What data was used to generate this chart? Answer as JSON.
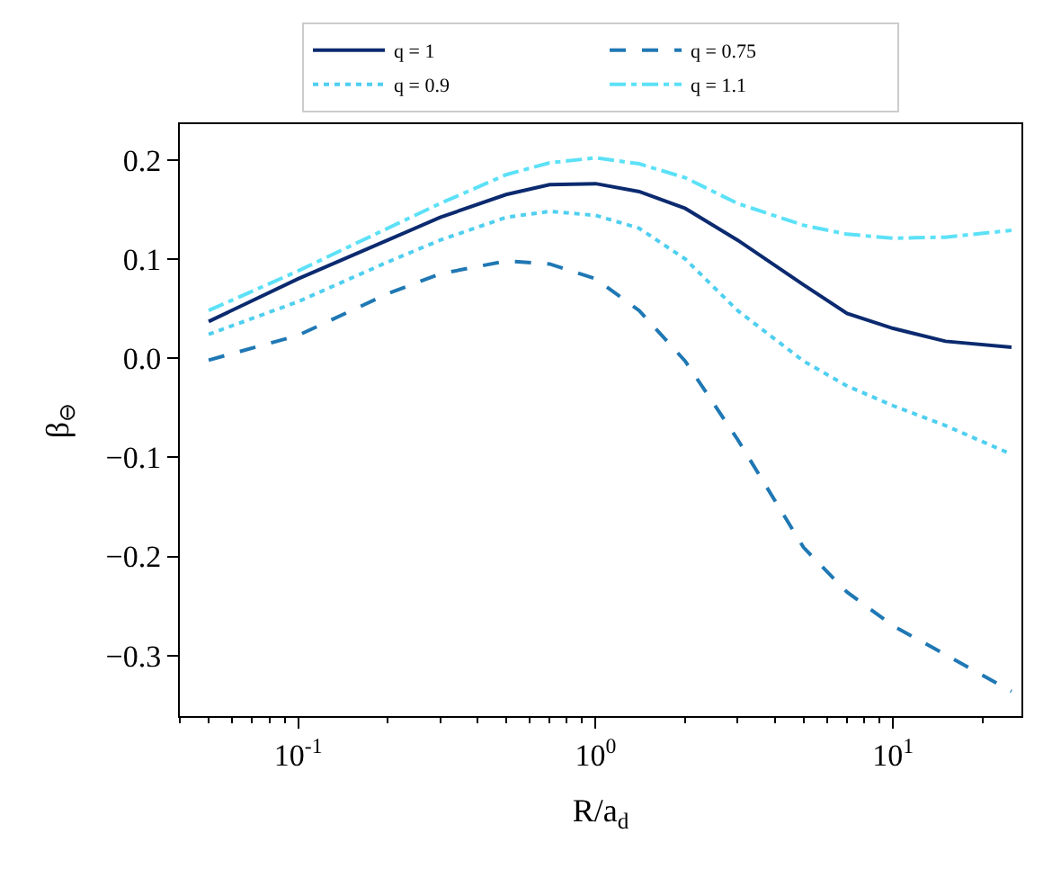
{
  "chart_data": {
    "type": "line",
    "xlabel": "R/a$_{d}$",
    "ylabel": "β$_{⊖}$",
    "log": "x",
    "legend": "top",
    "marker": "none",
    "x": [
      0.05,
      0.1,
      0.2,
      0.3,
      0.5,
      0.7,
      1,
      1.4,
      2,
      3,
      5,
      7,
      10,
      15,
      25
    ],
    "xlim": [
      0.04,
      27
    ],
    "xticks": [
      {
        "value": 0.1,
        "label": "10$^{-1}$"
      },
      {
        "value": 1,
        "label": "10$^{0}$"
      },
      {
        "value": 10,
        "label": "10$^{1}$"
      },
      {
        "value": 0.04,
        "label": null
      },
      {
        "value": 0.05,
        "label": null
      },
      {
        "value": 0.06,
        "label": null
      },
      {
        "value": 0.07,
        "label": null
      },
      {
        "value": 0.08,
        "label": null
      },
      {
        "value": 0.09,
        "label": null
      },
      {
        "value": 0.2,
        "label": null
      },
      {
        "value": 0.3,
        "label": null
      },
      {
        "value": 0.4,
        "label": null
      },
      {
        "value": 0.5,
        "label": null
      },
      {
        "value": 0.6,
        "label": null
      },
      {
        "value": 0.7,
        "label": null
      },
      {
        "value": 0.8,
        "label": null
      },
      {
        "value": 0.9,
        "label": null
      },
      {
        "value": 2,
        "label": null
      },
      {
        "value": 3,
        "label": null
      },
      {
        "value": 4,
        "label": null
      },
      {
        "value": 5,
        "label": null
      },
      {
        "value": 6,
        "label": null
      },
      {
        "value": 7,
        "label": null
      },
      {
        "value": 8,
        "label": null
      },
      {
        "value": 9,
        "label": null
      },
      {
        "value": 20,
        "label": null
      }
    ],
    "ylim": [
      -0.361,
      0.236
    ],
    "yticks": [
      {
        "value": -0.3,
        "label": "−0.3"
      },
      {
        "value": -0.2,
        "label": "−0.2"
      },
      {
        "value": -0.1,
        "label": "−0.1"
      },
      {
        "value": 0,
        "label": "0.0"
      },
      {
        "value": 0.1,
        "label": "0.1"
      },
      {
        "value": 0.2,
        "label": "0.2"
      }
    ],
    "series": [
      {
        "name": "q = 1",
        "color": "#0b2a6f",
        "line_style": "solid",
        "values": [
          0.037,
          0.08,
          0.119,
          0.142,
          0.165,
          0.175,
          0.176,
          0.168,
          0.151,
          0.119,
          0.074,
          0.045,
          0.03,
          0.017,
          0.011
        ]
      },
      {
        "name": "q = 0.75",
        "color": "#1f78b4",
        "line_style": "dashed",
        "values": [
          -0.002,
          0.023,
          0.065,
          0.085,
          0.098,
          0.095,
          0.08,
          0.048,
          -0.003,
          -0.082,
          -0.191,
          -0.236,
          -0.27,
          -0.299,
          -0.336
        ]
      },
      {
        "name": "q = 0.9",
        "color": "#4fcff0",
        "line_style": "dotted",
        "values": [
          0.024,
          0.057,
          0.097,
          0.119,
          0.142,
          0.148,
          0.144,
          0.131,
          0.1,
          0.048,
          -0.003,
          -0.028,
          -0.048,
          -0.068,
          -0.097
        ]
      },
      {
        "name": "q = 1.1",
        "color": "#5ce1f7",
        "line_style": "dashdot",
        "values": [
          0.048,
          0.088,
          0.131,
          0.156,
          0.185,
          0.197,
          0.202,
          0.196,
          0.182,
          0.156,
          0.134,
          0.125,
          0.121,
          0.122,
          0.129
        ]
      }
    ]
  }
}
